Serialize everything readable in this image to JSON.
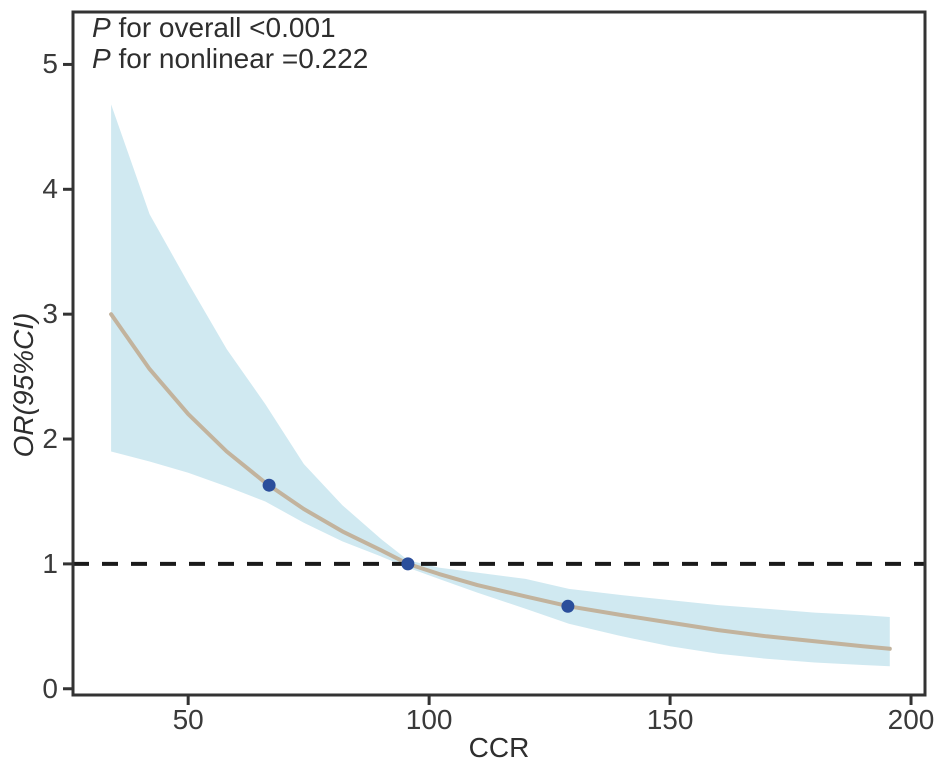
{
  "chart_data": {
    "type": "line",
    "title": "",
    "xlabel": "CCR",
    "ylabel": "OR(95%CI)",
    "legend": [],
    "grid": false,
    "annotations": [
      {
        "prefix": "P",
        "text": " for overall <0.001"
      },
      {
        "prefix": "P",
        "text": " for nonlinear =0.222"
      }
    ],
    "xticks": [
      50,
      100,
      150,
      200
    ],
    "yticks": [
      0,
      1,
      2,
      3,
      4,
      5
    ],
    "xlim": [
      26.1,
      202.9
    ],
    "ylim": [
      -0.05,
      5.42
    ],
    "reference_line_y": 1,
    "series": [
      {
        "name": "95% CI band",
        "type": "area",
        "x": [
          34,
          42,
          50,
          58,
          66,
          74,
          82,
          90,
          95.6,
          102,
          110,
          120,
          129,
          140,
          150,
          160,
          170,
          180,
          190,
          195.6
        ],
        "upper": [
          4.68,
          3.8,
          3.25,
          2.72,
          2.28,
          1.8,
          1.47,
          1.2,
          1.03,
          0.97,
          0.93,
          0.88,
          0.8,
          0.75,
          0.71,
          0.67,
          0.64,
          0.61,
          0.59,
          0.575
        ],
        "lower": [
          1.9,
          1.82,
          1.73,
          1.62,
          1.5,
          1.33,
          1.18,
          1.06,
          0.97,
          0.88,
          0.77,
          0.64,
          0.52,
          0.42,
          0.34,
          0.28,
          0.24,
          0.21,
          0.19,
          0.18
        ]
      },
      {
        "name": "fitted OR",
        "type": "line",
        "x": [
          34,
          42,
          50,
          58,
          66,
          74,
          82,
          90,
          95.6,
          102,
          110,
          120,
          129,
          140,
          150,
          160,
          170,
          180,
          190,
          195.6
        ],
        "y": [
          3.0,
          2.56,
          2.2,
          1.9,
          1.65,
          1.44,
          1.26,
          1.11,
          1.0,
          0.92,
          0.83,
          0.74,
          0.66,
          0.59,
          0.53,
          0.47,
          0.42,
          0.38,
          0.34,
          0.32
        ]
      },
      {
        "name": "knot points",
        "type": "scatter",
        "points": [
          [
            66.8,
            1.63
          ],
          [
            95.6,
            1.0
          ],
          [
            128.8,
            0.66
          ]
        ]
      }
    ],
    "colors": {
      "band": "#d0e9f1",
      "curve": "#c2b39d",
      "point": "#2b4e9b",
      "axis": "#333333",
      "refline": "#1a1a1a",
      "text": "#3a3a3a"
    }
  }
}
